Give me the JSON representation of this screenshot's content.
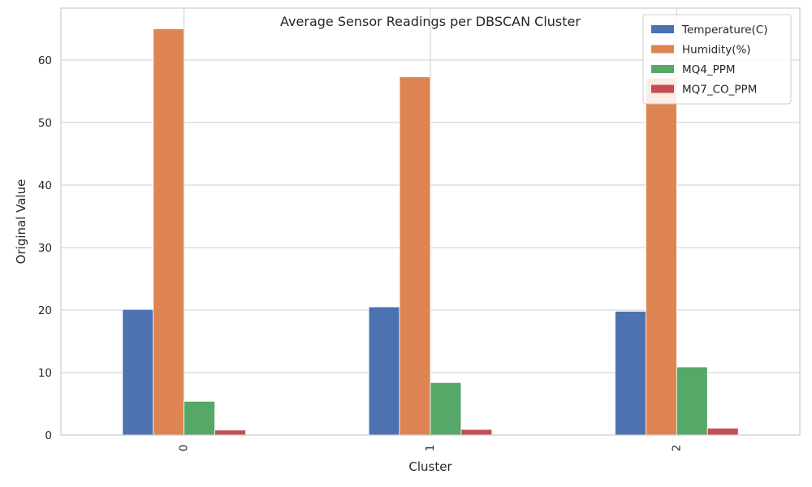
{
  "chart_data": {
    "type": "bar",
    "title": "Average Sensor Readings per DBSCAN Cluster",
    "xlabel": "Cluster",
    "ylabel": "Original Value",
    "categories": [
      "0",
      "1",
      "2"
    ],
    "ylim": [
      0,
      68.3
    ],
    "yticks": [
      0,
      10,
      20,
      30,
      40,
      50,
      60
    ],
    "grid": true,
    "legend_position": "top-right",
    "series": [
      {
        "name": "Temperature(C)",
        "color": "#4c72b0",
        "values": [
          20.1,
          20.5,
          19.8
        ]
      },
      {
        "name": "Humidity(%)",
        "color": "#dd8452",
        "values": [
          65.0,
          57.3,
          57.1
        ]
      },
      {
        "name": "MQ4_PPM",
        "color": "#55a868",
        "values": [
          5.4,
          8.4,
          10.9
        ]
      },
      {
        "name": "MQ7_CO_PPM",
        "color": "#c44e52",
        "values": [
          0.8,
          0.9,
          1.1
        ]
      }
    ]
  }
}
